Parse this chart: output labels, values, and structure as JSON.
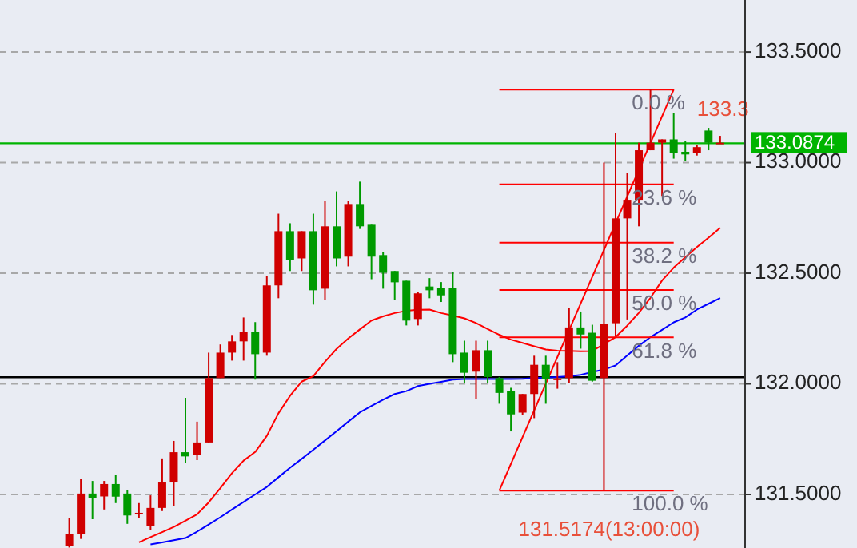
{
  "chart_data": {
    "type": "candlestick",
    "categories": [
      null,
      null,
      null,
      null,
      null,
      null,
      null,
      null,
      null,
      null,
      null,
      null,
      null,
      null,
      null,
      null,
      null,
      null,
      null,
      null,
      null,
      null,
      null,
      null,
      null,
      null,
      null,
      null,
      null,
      null,
      null,
      null,
      null,
      null,
      null,
      null,
      null,
      null,
      null,
      null,
      null,
      null,
      null,
      null,
      null,
      null,
      null,
      null,
      null,
      null,
      null,
      null,
      null,
      null,
      null,
      null,
      null
    ],
    "ohlc": [
      [
        131.266,
        131.395,
        131.26,
        131.323
      ],
      [
        131.323,
        131.569,
        131.299,
        131.504
      ],
      [
        131.504,
        131.561,
        131.388,
        131.484
      ],
      [
        131.491,
        131.561,
        131.432,
        131.547
      ],
      [
        131.547,
        131.59,
        131.461,
        131.49
      ],
      [
        131.504,
        131.518,
        131.367,
        131.405
      ],
      [
        131.41,
        131.461,
        131.395,
        131.417
      ],
      [
        131.359,
        131.496,
        131.338,
        131.439
      ],
      [
        131.439,
        131.663,
        131.425,
        131.554
      ],
      [
        131.554,
        131.742,
        131.446,
        131.691
      ],
      [
        131.691,
        131.937,
        131.641,
        131.672
      ],
      [
        131.677,
        131.829,
        131.655,
        131.735
      ],
      [
        131.735,
        132.141,
        131.735,
        132.026
      ],
      [
        132.026,
        132.178,
        132.026,
        132.141
      ],
      [
        132.141,
        132.221,
        132.105,
        132.192
      ],
      [
        132.192,
        132.3,
        132.105,
        132.235
      ],
      [
        132.235,
        132.279,
        132.019,
        132.134
      ],
      [
        132.141,
        132.488,
        132.127,
        132.445
      ],
      [
        132.445,
        132.769,
        132.387,
        132.69
      ],
      [
        132.69,
        132.726,
        132.51,
        132.56
      ],
      [
        132.567,
        132.69,
        132.51,
        132.69
      ],
      [
        132.69,
        132.769,
        132.358,
        132.423
      ],
      [
        132.43,
        132.827,
        132.38,
        132.712
      ],
      [
        132.712,
        132.87,
        132.531,
        132.567
      ],
      [
        132.575,
        132.827,
        132.531,
        132.813
      ],
      [
        132.813,
        132.914,
        132.7,
        132.712
      ],
      [
        132.719,
        132.719,
        132.473,
        132.575
      ],
      [
        132.582,
        132.596,
        132.43,
        132.502
      ],
      [
        132.51,
        132.51,
        132.38,
        132.459
      ],
      [
        132.466,
        132.466,
        132.264,
        132.286
      ],
      [
        132.293,
        132.416,
        132.264,
        132.409
      ],
      [
        132.44,
        132.478,
        132.387,
        132.423
      ],
      [
        132.435,
        132.46,
        132.37,
        132.4
      ],
      [
        132.435,
        132.507,
        132.098,
        132.134
      ],
      [
        132.141,
        132.195,
        132.002,
        132.05
      ],
      [
        132.055,
        132.195,
        131.93,
        132.152
      ],
      [
        132.152,
        132.195,
        132.002,
        132.031
      ],
      [
        132.026,
        132.031,
        131.91,
        131.959
      ],
      [
        131.966,
        131.982,
        131.785,
        131.862
      ],
      [
        131.87,
        131.954,
        131.86,
        131.954
      ],
      [
        131.954,
        132.127,
        131.845,
        132.086
      ],
      [
        132.086,
        132.127,
        131.91,
        132.021
      ],
      [
        132.02,
        132.098,
        131.978,
        132.024
      ],
      [
        132.026,
        132.344,
        132.002,
        132.255
      ],
      [
        132.255,
        132.327,
        132.159,
        132.223
      ],
      [
        132.231,
        132.267,
        132.01,
        132.014
      ],
      [
        132.026,
        133.0,
        131.5174,
        132.271
      ],
      [
        132.274,
        133.133,
        132.218,
        132.748
      ],
      [
        132.748,
        132.953,
        132.291,
        132.832
      ],
      [
        132.832,
        133.09,
        132.712,
        133.056
      ],
      [
        133.056,
        133.33,
        133.056,
        133.09
      ],
      [
        133.09,
        133.105,
        132.849,
        133.105
      ],
      [
        133.105,
        133.224,
        133.018,
        133.042
      ],
      [
        133.049,
        133.097,
        133.008,
        133.037
      ],
      [
        133.042,
        133.08,
        133.032,
        133.07
      ],
      [
        133.145,
        133.157,
        133.056,
        133.09
      ],
      [
        133.085,
        133.121,
        133.085,
        133.09
      ]
    ],
    "colors": [
      "#d00000",
      "#d00000",
      "#009a00",
      "#d00000",
      "#009a00",
      "#009a00",
      "#d00000",
      "#d00000",
      "#d00000",
      "#d00000",
      "#009a00",
      "#d00000",
      "#d00000",
      "#d00000",
      "#d00000",
      "#d00000",
      "#009a00",
      "#d00000",
      "#d00000",
      "#009a00",
      "#d00000",
      "#009a00",
      "#d00000",
      "#009a00",
      "#d00000",
      "#009a00",
      "#009a00",
      "#009a00",
      "#009a00",
      "#009a00",
      "#d00000",
      "#009a00",
      "#009a00",
      "#009a00",
      "#009a00",
      "#d00000",
      "#009a00",
      "#009a00",
      "#009a00",
      "#d00000",
      "#d00000",
      "#009a00",
      "#d00000",
      "#d00000",
      "#009a00",
      "#009a00",
      "#d00000",
      "#d00000",
      "#d00000",
      "#d00000",
      "#d00000",
      "#d00000",
      "#009a00",
      "#009a00",
      "#d00000",
      "#009a00",
      "#d00000"
    ],
    "series": [
      {
        "type": "line",
        "color": "#ff0000",
        "values": [
          null,
          null,
          null,
          null,
          null,
          null,
          131.284,
          131.307,
          131.33,
          131.353,
          131.381,
          131.41,
          131.464,
          131.528,
          131.596,
          131.653,
          131.692,
          131.765,
          131.867,
          131.946,
          132.01,
          132.035,
          132.1,
          132.158,
          132.205,
          132.246,
          132.286,
          132.305,
          132.32,
          132.33,
          132.335,
          132.336,
          132.32,
          132.309,
          132.296,
          132.275,
          132.248,
          132.222,
          132.2,
          132.185,
          132.17,
          132.155,
          132.15,
          132.149,
          132.147,
          132.148,
          132.18,
          132.211,
          132.263,
          132.321,
          132.389,
          132.467,
          132.525,
          132.572,
          132.618,
          132.661,
          132.705
        ]
      },
      {
        "type": "line",
        "color": "#0000ff",
        "values": [
          null,
          null,
          null,
          null,
          null,
          null,
          null,
          131.274,
          131.283,
          131.293,
          131.303,
          131.332,
          131.364,
          131.397,
          131.432,
          131.466,
          131.5,
          131.534,
          131.578,
          131.621,
          131.661,
          131.702,
          131.744,
          131.786,
          131.829,
          131.871,
          131.9,
          131.928,
          131.954,
          131.967,
          131.99,
          132.0,
          132.009,
          132.019,
          132.022,
          132.022,
          132.022,
          132.022,
          132.022,
          132.023,
          132.026,
          132.028,
          132.031,
          132.034,
          132.041,
          132.053,
          132.065,
          132.083,
          132.128,
          132.172,
          132.211,
          132.244,
          132.278,
          132.3,
          132.336,
          132.362,
          132.388
        ]
      },
      {
        "type": "line",
        "color": "#ff0000",
        "values": [
          null,
          null,
          null,
          null,
          null,
          null,
          null,
          null,
          null,
          null,
          null,
          null,
          null,
          null,
          null,
          null,
          null,
          null,
          null,
          null,
          null,
          null,
          null,
          null,
          null,
          null,
          null,
          null,
          null,
          null,
          null,
          null,
          null,
          null,
          null,
          null,
          null,
          133.33,
          133.33,
          133.33,
          133.33,
          133.33,
          133.33,
          133.33,
          133.33,
          133.33,
          133.33,
          133.33,
          133.33,
          133.33,
          133.33,
          133.33,
          133.33,
          null,
          null,
          null,
          null
        ]
      },
      {
        "type": "line",
        "color": "#ff0000",
        "values": [
          null,
          null,
          null,
          null,
          null,
          null,
          null,
          null,
          null,
          null,
          null,
          null,
          null,
          null,
          null,
          null,
          null,
          null,
          null,
          null,
          null,
          null,
          null,
          null,
          null,
          null,
          null,
          null,
          null,
          null,
          null,
          null,
          null,
          null,
          null,
          null,
          null,
          132.902,
          132.902,
          132.902,
          132.902,
          132.902,
          132.902,
          132.902,
          132.902,
          132.902,
          132.902,
          132.902,
          132.902,
          132.902,
          132.902,
          132.902,
          132.902,
          null,
          null,
          null,
          null
        ]
      },
      {
        "type": "line",
        "color": "#ff0000",
        "values": [
          null,
          null,
          null,
          null,
          null,
          null,
          null,
          null,
          null,
          null,
          null,
          null,
          null,
          null,
          null,
          null,
          null,
          null,
          null,
          null,
          null,
          null,
          null,
          null,
          null,
          null,
          null,
          null,
          null,
          null,
          null,
          null,
          null,
          null,
          null,
          null,
          null,
          132.638,
          132.638,
          132.638,
          132.638,
          132.638,
          132.638,
          132.638,
          132.638,
          132.638,
          132.638,
          132.638,
          132.638,
          132.638,
          132.638,
          132.638,
          132.638,
          null,
          null,
          null,
          null
        ]
      },
      {
        "type": "line",
        "color": "#ff0000",
        "values": [
          null,
          null,
          null,
          null,
          null,
          null,
          null,
          null,
          null,
          null,
          null,
          null,
          null,
          null,
          null,
          null,
          null,
          null,
          null,
          null,
          null,
          null,
          null,
          null,
          null,
          null,
          null,
          null,
          null,
          null,
          null,
          null,
          null,
          null,
          null,
          null,
          null,
          132.424,
          132.424,
          132.424,
          132.424,
          132.424,
          132.424,
          132.424,
          132.424,
          132.424,
          132.424,
          132.424,
          132.424,
          132.424,
          132.424,
          132.424,
          132.424,
          null,
          null,
          null,
          null
        ]
      },
      {
        "type": "line",
        "color": "#ff0000",
        "values": [
          null,
          null,
          null,
          null,
          null,
          null,
          null,
          null,
          null,
          null,
          null,
          null,
          null,
          null,
          null,
          null,
          null,
          null,
          null,
          null,
          null,
          null,
          null,
          null,
          null,
          null,
          null,
          null,
          null,
          null,
          null,
          null,
          null,
          null,
          null,
          null,
          null,
          132.21,
          132.21,
          132.21,
          132.21,
          132.21,
          132.21,
          132.21,
          132.21,
          132.21,
          132.21,
          132.21,
          132.21,
          132.21,
          132.21,
          132.21,
          132.21,
          null,
          null,
          null,
          null
        ]
      },
      {
        "type": "line",
        "color": "#ff0000",
        "values": [
          null,
          null,
          null,
          null,
          null,
          null,
          null,
          null,
          null,
          null,
          null,
          null,
          null,
          null,
          null,
          null,
          null,
          null,
          null,
          null,
          null,
          null,
          null,
          null,
          null,
          null,
          null,
          null,
          null,
          null,
          null,
          null,
          null,
          null,
          null,
          null,
          null,
          131.5174,
          131.5174,
          131.5174,
          131.5174,
          131.5174,
          131.5174,
          131.5174,
          131.5174,
          131.5174,
          131.5174,
          131.5174,
          131.5174,
          131.5174,
          131.5174,
          131.5174,
          131.5174,
          null,
          null,
          null,
          null
        ]
      },
      {
        "type": "line",
        "color": "#ff0000",
        "values": [
          null,
          null,
          null,
          null,
          null,
          null,
          null,
          null,
          null,
          null,
          null,
          null,
          null,
          null,
          null,
          null,
          null,
          null,
          null,
          null,
          null,
          null,
          null,
          null,
          null,
          null,
          null,
          null,
          null,
          null,
          null,
          null,
          null,
          null,
          null,
          null,
          null,
          131.5174,
          null,
          null,
          null,
          null,
          null,
          null,
          null,
          null,
          null,
          null,
          null,
          null,
          null,
          null,
          133.33,
          null,
          null,
          null,
          null
        ]
      }
    ],
    "ylim": [
      131.258,
      133.735
    ],
    "yticks": [
      {
        "value": 131.5,
        "label": "131.5000"
      },
      {
        "value": 132.0,
        "label": "132.0000"
      },
      {
        "value": 132.5,
        "label": "132.5000"
      },
      {
        "value": 133.0,
        "label": "133.0000"
      },
      {
        "value": 133.5,
        "label": "133.5000"
      }
    ],
    "ref_lines": [
      {
        "axis": "y",
        "value": 132.03,
        "color": "#000000"
      },
      {
        "axis": "y",
        "value": 133.0874,
        "label": "133.0874",
        "color": "#00b400"
      }
    ],
    "annotations": [
      {
        "text": "0.0 %",
        "y": 133.33
      },
      {
        "text": "23.6 %",
        "y": 132.902
      },
      {
        "text": "38.2 %",
        "y": 132.638
      },
      {
        "text": "50.0 %",
        "y": 132.424
      },
      {
        "text": "61.8 %",
        "y": 132.21
      },
      {
        "text": "100.0 %",
        "y": 131.5174
      },
      "131.5174(13:00:00)",
      "133.3"
    ],
    "grid": "y",
    "tick_labels": "y"
  }
}
